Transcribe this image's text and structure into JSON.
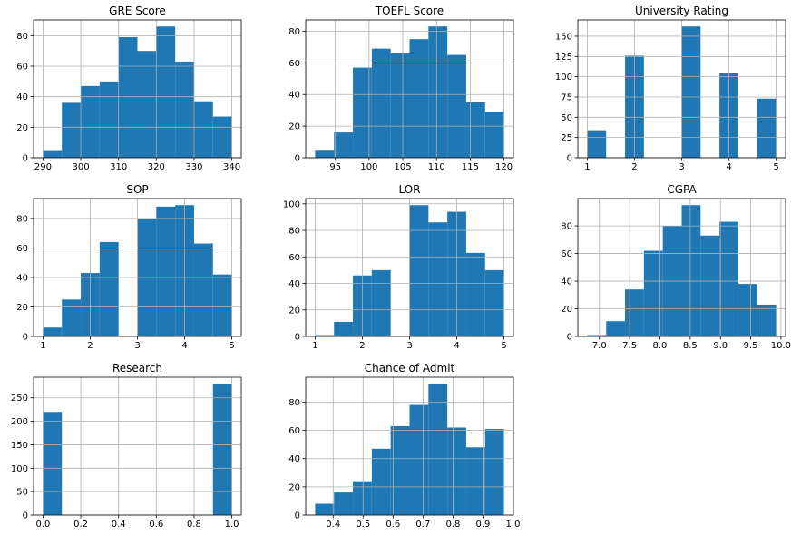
{
  "chart_data": [
    {
      "type": "histogram",
      "title": "GRE Score",
      "color": "#1f77b4",
      "grid": true,
      "bins": [
        290,
        295,
        300,
        305,
        310,
        315,
        320,
        325,
        330,
        335,
        340
      ],
      "values": [
        5,
        36,
        47,
        50,
        79,
        70,
        86,
        63,
        37,
        27
      ],
      "xlim": [
        287.5,
        342.5
      ],
      "xticks": [
        290,
        300,
        310,
        320,
        330,
        340
      ],
      "ylim": [
        0,
        90.3
      ],
      "yticks": [
        0,
        20,
        40,
        60,
        80
      ]
    },
    {
      "type": "histogram",
      "title": "TOEFL Score",
      "color": "#1f77b4",
      "grid": true,
      "bins": [
        92,
        94.8,
        97.6,
        100.4,
        103.2,
        106,
        108.8,
        111.6,
        114.4,
        117.2,
        120
      ],
      "values": [
        5,
        16,
        57,
        69,
        66,
        75,
        83,
        65,
        35,
        29
      ],
      "xlim": [
        90.6,
        121.4
      ],
      "xticks": [
        95,
        100,
        105,
        110,
        115,
        120
      ],
      "ylim": [
        0,
        87.15
      ],
      "yticks": [
        0,
        20,
        40,
        60,
        80
      ]
    },
    {
      "type": "histogram",
      "title": "University Rating",
      "color": "#1f77b4",
      "grid": true,
      "bins": [
        1,
        1.4,
        1.8,
        2.2,
        2.6,
        3,
        3.4,
        3.8,
        4.2,
        4.6,
        5
      ],
      "values": [
        34,
        0,
        126,
        0,
        0,
        162,
        0,
        105,
        0,
        73
      ],
      "xlim": [
        0.8,
        5.2
      ],
      "xticks": [
        1,
        2,
        3,
        4,
        5
      ],
      "ylim": [
        0,
        170.1
      ],
      "yticks": [
        0,
        25,
        50,
        75,
        100,
        125,
        150
      ]
    },
    {
      "type": "histogram",
      "title": "SOP",
      "color": "#1f77b4",
      "grid": true,
      "bins": [
        1,
        1.4,
        1.8,
        2.2,
        2.6,
        3,
        3.4,
        3.8,
        4.2,
        4.6,
        5
      ],
      "values": [
        6,
        25,
        43,
        64,
        0,
        80,
        88,
        89,
        63,
        42
      ],
      "xlim": [
        0.8,
        5.2
      ],
      "xticks": [
        1,
        2,
        3,
        4,
        5
      ],
      "ylim": [
        0,
        93.45
      ],
      "yticks": [
        0,
        20,
        40,
        60,
        80
      ]
    },
    {
      "type": "histogram",
      "title": "LOR ",
      "color": "#1f77b4",
      "grid": true,
      "bins": [
        1,
        1.4,
        1.8,
        2.2,
        2.6,
        3,
        3.4,
        3.8,
        4.2,
        4.6,
        5
      ],
      "values": [
        1,
        11,
        46,
        50,
        0,
        99,
        86,
        94,
        63,
        50
      ],
      "xlim": [
        0.8,
        5.2
      ],
      "xticks": [
        1,
        2,
        3,
        4,
        5
      ],
      "ylim": [
        0,
        103.95
      ],
      "yticks": [
        0,
        20,
        40,
        60,
        80,
        100
      ]
    },
    {
      "type": "histogram",
      "title": "CGPA",
      "color": "#1f77b4",
      "grid": true,
      "bins": [
        6.8,
        7.112,
        7.424,
        7.736,
        8.048,
        8.36,
        8.672,
        8.984,
        9.296,
        9.608,
        9.92
      ],
      "values": [
        1,
        11,
        34,
        62,
        80,
        95,
        73,
        83,
        38,
        23
      ],
      "xlim": [
        6.644,
        10.076
      ],
      "xticks": [
        {
          "value": 7,
          "label": "7.0"
        },
        7.5,
        {
          "value": 8,
          "label": "8.0"
        },
        8.5,
        {
          "value": 9,
          "label": "9.0"
        },
        9.5,
        {
          "value": 10,
          "label": "10.0"
        }
      ],
      "ylim": [
        0,
        99.75
      ],
      "yticks": [
        0,
        20,
        40,
        60,
        80
      ]
    },
    {
      "type": "histogram",
      "title": "Research",
      "color": "#1f77b4",
      "grid": true,
      "bins": [
        0,
        0.1,
        0.2,
        0.3,
        0.4,
        0.5,
        0.6,
        0.7,
        0.8,
        0.9,
        1
      ],
      "values": [
        220,
        0,
        0,
        0,
        0,
        0,
        0,
        0,
        0,
        280
      ],
      "xlim": [
        -0.05,
        1.05
      ],
      "xticks": [
        {
          "value": 0,
          "label": "0.0"
        },
        0.2,
        0.4,
        0.6,
        0.8,
        {
          "value": 1,
          "label": "1.0"
        }
      ],
      "ylim": [
        0,
        294
      ],
      "yticks": [
        0,
        50,
        100,
        150,
        200,
        250
      ]
    },
    {
      "type": "histogram",
      "title": "Chance of Admit ",
      "color": "#1f77b4",
      "grid": true,
      "bins": [
        0.34,
        0.403,
        0.466,
        0.529,
        0.592,
        0.655,
        0.718,
        0.781,
        0.844,
        0.907,
        0.97
      ],
      "values": [
        8,
        16,
        24,
        47,
        63,
        78,
        93,
        62,
        48,
        61
      ],
      "xlim": [
        0.3085,
        1.0015
      ],
      "xticks": [
        0.4,
        0.5,
        0.6,
        0.7,
        0.8,
        0.9,
        {
          "value": 1,
          "label": "1.0"
        }
      ],
      "ylim": [
        0,
        97.65
      ],
      "yticks": [
        0,
        20,
        40,
        60,
        80
      ]
    }
  ]
}
